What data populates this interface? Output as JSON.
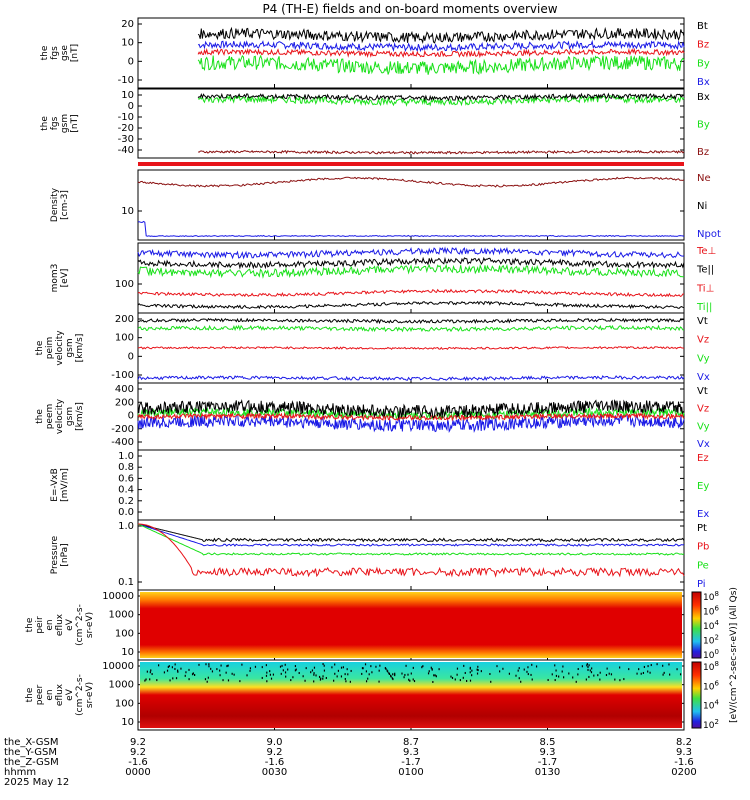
{
  "title": "P4 (TH-E) fields and on-board moments overview",
  "colors": {
    "black": "#000000",
    "red": "#e8141a",
    "green": "#19e019",
    "blue": "#1a1ae6",
    "darkred": "#8b1010"
  },
  "chart_data": {
    "type": "line",
    "x_time_labels": [
      "0000",
      "0030",
      "0100",
      "0130",
      "0200"
    ],
    "ephemeris": {
      "rows": [
        {
          "label": "the_X-GSM",
          "values": [
            "9.2",
            "9.0",
            "8.7",
            "8.5",
            "8.2"
          ]
        },
        {
          "label": "the_Y-GSM",
          "values": [
            "9.2",
            "9.2",
            "9.3",
            "9.3",
            "9.3"
          ]
        },
        {
          "label": "the_Z-GSM",
          "values": [
            "-1.6",
            "-1.6",
            "-1.7",
            "-1.7",
            "-1.6"
          ]
        },
        {
          "label": "hhmm",
          "values": [
            "0000",
            "0030",
            "0100",
            "0130",
            "0200"
          ]
        }
      ],
      "date": "2025 May 12"
    },
    "panels": [
      {
        "id": "fgs_gse",
        "ylabel": [
          "the",
          "fgs",
          "gse",
          "[nT]"
        ],
        "yticks": [
          "20",
          "10",
          "0",
          "-10"
        ],
        "ylim": [
          -15,
          25
        ],
        "series": [
          {
            "name": "Bt",
            "color": "#000000",
            "level": 15,
            "noise": 3
          },
          {
            "name": "Bz",
            "color": "#e8141a",
            "level": 5,
            "noise": 1.5
          },
          {
            "name": "By",
            "color": "#19e019",
            "level": -2,
            "noise": 4
          },
          {
            "name": "Bx",
            "color": "#1a1ae6",
            "level": 9,
            "noise": 2
          }
        ]
      },
      {
        "id": "fgs_gsm",
        "ylabel": [
          "the",
          "fgs",
          "gsm",
          "[nT]"
        ],
        "yticks": [
          "10",
          "0",
          "-10",
          "-20",
          "-30",
          "-40"
        ],
        "ylim": [
          -45,
          15
        ],
        "series": [
          {
            "name": "Bx",
            "color": "#000000",
            "level": 8,
            "noise": 2
          },
          {
            "name": "By",
            "color": "#19e019",
            "level": 5,
            "noise": 3
          },
          {
            "name": "Bz",
            "color": "#8b1010",
            "level": -40,
            "noise": 1
          }
        ]
      },
      {
        "id": "density",
        "ylabel": [
          "Density",
          "[cm-3]"
        ],
        "yticks": [
          "10"
        ],
        "series": [
          {
            "name": "Ne",
            "color": "#8b1010"
          },
          {
            "name": "Ni",
            "color": "#000000"
          },
          {
            "name": "Npot",
            "color": "#1a1ae6"
          }
        ]
      },
      {
        "id": "temp",
        "ylabel": [
          "mom3",
          "[eV]"
        ],
        "yticks": [
          "100"
        ],
        "series": [
          {
            "name": "Te⊥",
            "color": "#e8141a"
          },
          {
            "name": "Te||",
            "color": "#000000"
          },
          {
            "name": "Ti⊥",
            "color": "#e8141a"
          },
          {
            "name": "Ti||",
            "color": "#19e019"
          }
        ]
      },
      {
        "id": "peim",
        "ylabel": [
          "the",
          "peim",
          "velocity",
          "gsm",
          "[km/s]"
        ],
        "yticks": [
          "200",
          "100",
          "0",
          "-100"
        ],
        "ylim": [
          -130,
          230
        ],
        "series": [
          {
            "name": "Vt",
            "color": "#000000",
            "level": 190,
            "noise": 8
          },
          {
            "name": "Vz",
            "color": "#e8141a",
            "level": 50,
            "noise": 5
          },
          {
            "name": "Vy",
            "color": "#19e019",
            "level": 150,
            "noise": 10
          },
          {
            "name": "Vx",
            "color": "#1a1ae6",
            "level": -105,
            "noise": 8
          }
        ]
      },
      {
        "id": "peem",
        "ylabel": [
          "the",
          "peem",
          "velocity",
          "gsm",
          "[km/s]"
        ],
        "yticks": [
          "400",
          "200",
          "0",
          "-200",
          "-400"
        ],
        "ylim": [
          -400,
          450
        ],
        "series": [
          {
            "name": "Vt",
            "color": "#000000",
            "level": 120,
            "noise": 80
          },
          {
            "name": "Vz",
            "color": "#e8141a",
            "level": 20,
            "noise": 30
          },
          {
            "name": "Vy",
            "color": "#19e019",
            "level": 60,
            "noise": 50
          },
          {
            "name": "Vx",
            "color": "#1a1ae6",
            "level": -60,
            "noise": 80
          }
        ]
      },
      {
        "id": "efield",
        "ylabel": [
          "E=-VxB",
          "[mV/m]"
        ],
        "yticks": [
          "1.0",
          "0.8",
          "0.6",
          "0.4",
          "0.2",
          "0.0"
        ],
        "series": [
          {
            "name": "Ez",
            "color": "#e8141a"
          },
          {
            "name": "Ey",
            "color": "#19e019"
          },
          {
            "name": "Ex",
            "color": "#1a1ae6"
          }
        ]
      },
      {
        "id": "pressure",
        "ylabel": [
          "Pressure",
          "[nPa]"
        ],
        "yticks": [
          "1.0",
          "0.1"
        ],
        "series": [
          {
            "name": "Pt",
            "color": "#000000"
          },
          {
            "name": "Pb",
            "color": "#e8141a"
          },
          {
            "name": "Pe",
            "color": "#19e019"
          },
          {
            "name": "Pi",
            "color": "#1a1ae6"
          }
        ]
      },
      {
        "id": "peir",
        "ylabel": [
          "the",
          "peir",
          "en",
          "eflux",
          "eV",
          "(cm^2-s-",
          "sr-eV)"
        ],
        "yticks": [
          "10000",
          "1000",
          "100",
          "10"
        ]
      },
      {
        "id": "peer",
        "ylabel": [
          "the",
          "peer",
          "en",
          "eflux",
          "eV",
          "(cm^2-s-",
          "sr-eV)"
        ],
        "yticks": [
          "10000",
          "1000",
          "100",
          "10"
        ]
      }
    ],
    "colorbars": [
      {
        "ticks": [
          "10^8",
          "10^6",
          "10^4",
          "10^2",
          "10^0"
        ]
      },
      {
        "ticks": [
          "10^8",
          "10^6",
          "10^4",
          "10^2"
        ]
      }
    ],
    "colorbar_label": "[eV/(cm^2-sec-sr-eV)] (All Qs)"
  }
}
